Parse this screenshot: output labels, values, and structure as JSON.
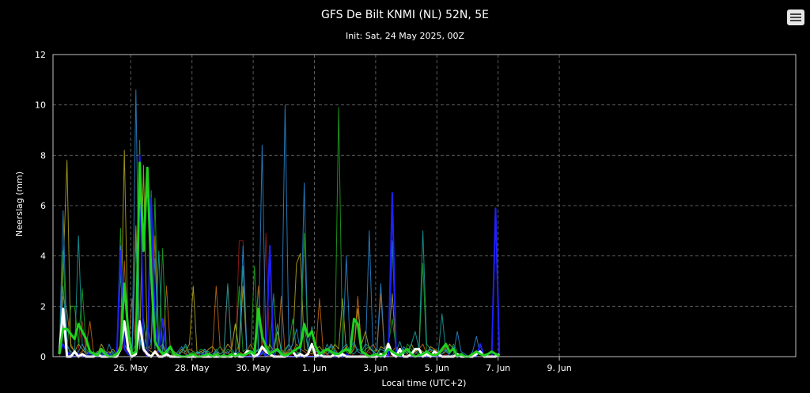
{
  "menu": {
    "icon": "hamburger-menu-icon"
  },
  "chart_data": {
    "type": "line",
    "title": "GFS De Bilt KNMI (NL) 52N, 5E",
    "subtitle": "Init: Sat, 24 May 2025, 00Z",
    "xlabel": "Local time (UTC+2)",
    "ylabel": "Neerslag (mm)",
    "ylim": [
      0,
      12
    ],
    "yticks": [
      "0",
      "2",
      "4",
      "6",
      "8",
      "10",
      "12"
    ],
    "xtick_labels": [
      "26. May",
      "28. May",
      "30. May",
      "1. Jun",
      "3. Jun",
      "5. Jun",
      "7. Jun",
      "9. Jun"
    ],
    "x_start_hour": 0,
    "x_step_hours": 3,
    "grid": true,
    "legend": "none",
    "series": [
      {
        "color": "#1fd11f",
        "width": 3,
        "values": [
          0.1,
          1.1,
          1.1,
          0.9,
          0.7,
          1.3,
          1.0,
          0.7,
          0.2,
          0.1,
          0.05,
          0.3,
          0.1,
          0,
          0,
          0.1,
          0.3,
          2.9,
          1.0,
          0.1,
          0.2,
          7.7,
          4.2,
          7.5,
          3.3,
          0.6,
          0.3,
          0.1,
          0.2,
          0.4,
          0.1,
          0.05,
          0,
          0,
          0.05,
          0.1,
          0,
          0,
          0.05,
          0.1,
          0,
          0.1,
          0,
          0.05,
          0,
          0.1,
          0,
          0.1,
          0.05,
          0.1,
          0.2,
          0.1,
          1.9,
          0.8,
          0.4,
          0.1,
          0.2,
          0.3,
          0.1,
          0.05,
          0.1,
          0.2,
          0.3,
          0.4,
          1.3,
          0.8,
          1.0,
          0.4,
          0.1,
          0.2,
          0.3,
          0.2,
          0.1,
          0.1,
          0.2,
          0.3,
          0.2,
          1.5,
          1.3,
          0.2,
          0.1,
          0,
          0.05,
          0.1,
          0,
          0.1,
          0.3,
          0.2,
          0.1,
          0.05,
          0.2,
          0.3,
          0.1,
          0,
          0.05,
          0.1,
          0.2,
          0.1,
          0.05,
          0.1,
          0.3,
          0.5,
          0.2,
          0.3,
          0,
          0.1,
          0,
          0,
          0.1,
          0.2,
          0.1,
          0.05,
          0.1,
          0.2,
          0.1,
          0.05
        ]
      },
      {
        "color": "#ffffff",
        "width": 3,
        "values": [
          0.1,
          1.9,
          0,
          0,
          0.2,
          0,
          0.1,
          0,
          0,
          0,
          0.1,
          0,
          0,
          0,
          0,
          0,
          0.3,
          1.4,
          0.3,
          0,
          0.1,
          1.4,
          0.3,
          0.1,
          0,
          0.2,
          0,
          0,
          0.1,
          0,
          0,
          0,
          0,
          0,
          0,
          0,
          0,
          0,
          0,
          0,
          0,
          0,
          0,
          0,
          0,
          0,
          0.1,
          0,
          0,
          0.2,
          0.2,
          0,
          0.1,
          0.4,
          0.2,
          0.1,
          0,
          0,
          0,
          0,
          0.1,
          0.2,
          0,
          0.1,
          0,
          0.1,
          0.5,
          0,
          0.1,
          0,
          0,
          0,
          0.1,
          0,
          0.1,
          0,
          0,
          0,
          0,
          0,
          0,
          0,
          0,
          0,
          0.1,
          0,
          0.5,
          0.1,
          0,
          0.3,
          0,
          0,
          0.1,
          0.3,
          0.3,
          0,
          0.1,
          0,
          0.2,
          0.1,
          0,
          0,
          0,
          0,
          0.1,
          0,
          0,
          0,
          0,
          0.1,
          0.2,
          0,
          0,
          0,
          0,
          0.1
        ]
      },
      {
        "color": "#1f1fff",
        "width": 2,
        "values": [
          0.1,
          0.5,
          0.2,
          0,
          0,
          0.1,
          0,
          0,
          0.2,
          0,
          0,
          0,
          0.1,
          0.1,
          0,
          0,
          4.2,
          0.3,
          0.1,
          0,
          0.2,
          8.0,
          0.3,
          0,
          6.3,
          1.3,
          0.2,
          1.5,
          0.1,
          0,
          0,
          0.1,
          0,
          0,
          0,
          0,
          0,
          0,
          0.1,
          0,
          0,
          0,
          0,
          0,
          0,
          0.1,
          0,
          0,
          0,
          0,
          0,
          0,
          0,
          0.2,
          0,
          4.4,
          0,
          0,
          0,
          0,
          0,
          0,
          0,
          0,
          0,
          0,
          0,
          0,
          0,
          0,
          0,
          0,
          0,
          0,
          0,
          0.1,
          0,
          0,
          0,
          0,
          0,
          0,
          0,
          0,
          0,
          0,
          0,
          6.5,
          0.1,
          0,
          0,
          0,
          0,
          0,
          0,
          0,
          0,
          0,
          0,
          0,
          0,
          0,
          0,
          0,
          0,
          0,
          0,
          0,
          0,
          0,
          0.5,
          0,
          0,
          0,
          5.9,
          0.1
        ]
      },
      {
        "color": "#2a8bd6",
        "width": 1,
        "values": [
          0.2,
          5.8,
          0.5,
          0.1,
          0,
          0.2,
          0.5,
          0.1,
          0,
          0.1,
          0,
          0.2,
          0,
          0.5,
          0.1,
          0,
          4.4,
          0.3,
          0.1,
          0,
          10.6,
          0.7,
          0.2,
          1.2,
          0.5,
          3.9,
          0.2,
          0.4,
          0.1,
          0,
          0,
          0.2,
          0.4,
          0.1,
          0,
          0,
          0.2,
          0,
          0.3,
          0,
          0.1,
          0.2,
          0,
          0.1,
          0.2,
          0,
          0.1,
          0.2,
          4.4,
          0.3,
          0,
          0.1,
          0.3,
          8.4,
          0,
          0.1,
          0,
          0.3,
          0,
          10.0,
          0.2,
          0.5,
          1.1,
          0.2,
          6.9,
          0.1,
          0.4,
          0.2,
          0.2,
          0.1,
          0,
          0.5,
          0.2,
          0.1,
          0.1,
          4.0,
          0.3,
          0.6,
          0.2,
          0.1,
          0.1,
          5.0,
          0.1,
          0.3,
          2.9,
          0.2,
          0,
          4.6,
          0.3,
          0.1,
          0.4,
          0.2,
          0.1,
          0.1,
          0.3,
          0.1,
          0.2,
          0.3,
          0,
          0.2,
          0.1,
          0.3,
          0,
          0.1,
          1.0,
          0.2,
          0.1,
          0,
          0.2,
          0.8,
          0.1,
          0,
          0.1
        ]
      },
      {
        "color": "#1aa3a3",
        "width": 1,
        "values": [
          0.3,
          2.8,
          0.4,
          0.2,
          0.1,
          4.8,
          0.5,
          0.2,
          0.1,
          0.1,
          0.2,
          0.1,
          0,
          0.1,
          0.2,
          0,
          3.3,
          0.5,
          0.2,
          0.1,
          4.7,
          0.3,
          1.5,
          0.2,
          6.6,
          0.3,
          4.2,
          0.2,
          0.1,
          0.3,
          0.1,
          0,
          0.2,
          0.5,
          0.1,
          0,
          0.2,
          0.1,
          0.2,
          0.2,
          0,
          0.3,
          0.1,
          0.2,
          2.9,
          0.3,
          0.1,
          0.5,
          3.6,
          0.2,
          0.1,
          0.3,
          0.2,
          0.1,
          0.4,
          0.2,
          0.3,
          1.3,
          0.1,
          0.2,
          0.5,
          0.2,
          0.1,
          0.2,
          1.2,
          0.3,
          1.2,
          0.4,
          0.2,
          0.1,
          0.5,
          0.1,
          0.2,
          0.1,
          0.3,
          0.5,
          0.2,
          0.1,
          0.3,
          0.2,
          0.5,
          0.4,
          0.2,
          0.1,
          0.3,
          0.2,
          0.5,
          0.1,
          0.2,
          0.6,
          0.1,
          0.2,
          0.5,
          1.0,
          0.3,
          5.0,
          0.5,
          0.3,
          0.2,
          0.1,
          1.7,
          0.2,
          0.1,
          0.4,
          0.1
        ]
      },
      {
        "color": "#1fa81f",
        "width": 1,
        "values": [
          0.2,
          4.2,
          0.3,
          2.0,
          2.0,
          0.5,
          2.7,
          0.3,
          0.1,
          0.2,
          0,
          0.2,
          0.1,
          0,
          0.1,
          0.1,
          5.1,
          0.3,
          0.1,
          0.2,
          0.5,
          8.6,
          0.4,
          0.3,
          0.5,
          6.3,
          0.2,
          4.3,
          0.1,
          0.2,
          0,
          0.1,
          0.2,
          0.4,
          0.1,
          0.2,
          0.1,
          0.3,
          0.2,
          0,
          0.1,
          0.2,
          0.4,
          0.1,
          0.3,
          0.2,
          0.1,
          2.8,
          0.2,
          0.3,
          0.1,
          3.6,
          0.2,
          0.1,
          0.5,
          0.3,
          2.5,
          0.2,
          0.1,
          0.3,
          0.5,
          1.5,
          0.2,
          0.1,
          4.9,
          0.3,
          0.2,
          0.5,
          0.1,
          0.3,
          0.2,
          0.4,
          0.1,
          9.9,
          0.3,
          0.2,
          0.1,
          0.5,
          0.2,
          0.1,
          0.3,
          0.4,
          0.2,
          0.3,
          0.1,
          0.2,
          0.5,
          1.5,
          0.3,
          0.2,
          0.1,
          0.5,
          0.3,
          0.2,
          0.1,
          3.7,
          0.1,
          0.3,
          0.2,
          0.1,
          0.2,
          0.3,
          0.1,
          0.5,
          0.2
        ]
      },
      {
        "color": "#b5a91f",
        "width": 1,
        "values": [
          0.2,
          3.5,
          7.8,
          0.4,
          0.2,
          0.5,
          0.3,
          0.1,
          0.2,
          0,
          0.1,
          0.5,
          0.2,
          0.1,
          0.3,
          0.1,
          0.5,
          8.2,
          0.4,
          0.2,
          5.2,
          0.3,
          7.6,
          0.3,
          0.2,
          0.1,
          0.3,
          0.5,
          0.1,
          0,
          0.2,
          0.1,
          0.3,
          0.2,
          0.5,
          2.8,
          0.1,
          0.2,
          0.1,
          0.3,
          0.4,
          0.2,
          0.1,
          0.2,
          0.5,
          0.3,
          1.3,
          0.2,
          2.8,
          0.3,
          0.2,
          0.1,
          0.3,
          0.2,
          0.1,
          0.5,
          0.2,
          1.0,
          0.3,
          0.1,
          0.2,
          0.5,
          3.7,
          4.1,
          0.3,
          0.2,
          0.1,
          0.3,
          0.4,
          0.2,
          0.1,
          0.2,
          0.5,
          0.3,
          2.3,
          0.2,
          0.1,
          0.3,
          1.9,
          0.5,
          1.0,
          0.3,
          0.2,
          0.1,
          0.4,
          0.3,
          0.6,
          2.5,
          0.2,
          0.1,
          0.3,
          0.1,
          0.5,
          0.2,
          0.3,
          0.2,
          0.1,
          0.4,
          0.3,
          0.2,
          0.1,
          0.2,
          0.5,
          0.3,
          0.1
        ]
      },
      {
        "color": "#c86a10",
        "width": 1,
        "values": [
          0.1,
          2.4,
          1.8,
          0.5,
          0.2,
          0.1,
          0.2,
          0.4,
          1.4,
          0.1,
          0.2,
          0,
          0.1,
          0.2,
          0,
          0.1,
          0.3,
          3.8,
          0.2,
          2.3,
          0.3,
          8.0,
          0.2,
          0.4,
          0.3,
          4.8,
          0.2,
          0.1,
          2.8,
          0.3,
          0.1,
          0,
          0.2,
          0.1,
          0.3,
          0.2,
          0.1,
          0.2,
          0.3,
          0.1,
          0.2,
          2.8,
          0.4,
          0.2,
          0.1,
          0.3,
          1.3,
          0.2,
          0.1,
          0.2,
          0.5,
          0.2,
          2.8,
          0.3,
          0.2,
          0.1,
          0.4,
          0.2,
          2.4,
          0.1,
          0.3,
          0.2,
          0.5,
          0.3,
          0.2,
          0.1,
          0.3,
          0.2,
          2.3,
          0.1,
          0.2,
          0.5,
          0.3,
          0.1,
          0.2,
          0.4,
          0.1,
          0.3,
          2.4,
          0.2,
          0.1,
          0.3,
          0.5,
          0.2,
          2.5,
          0.1,
          0.3,
          0.2,
          0.4,
          0.1,
          0.2,
          0.3,
          0.1,
          0.2,
          0.3,
          0.5,
          0.1,
          0.2,
          0.3,
          0.1,
          0.2,
          0.4,
          0.2,
          0.3
        ]
      },
      {
        "color": "#a01a1a",
        "width": 1,
        "values": [
          0,
          0.5,
          0.2,
          0.1,
          0,
          0.3,
          1.4,
          0.1,
          0,
          0,
          0.1,
          0,
          0,
          0.1,
          0,
          0,
          0.2,
          0.5,
          0.1,
          0,
          0.3,
          1.3,
          0.2,
          0,
          5.2,
          0.3,
          0.1,
          0,
          0.2,
          0,
          0,
          0.1,
          0,
          0,
          0.2,
          0,
          0.1,
          0,
          0,
          0.1,
          0,
          0.2,
          0,
          0.1,
          2.8,
          0.1,
          0,
          4.6,
          4.6,
          0.1,
          0,
          0.2,
          0,
          0.1,
          4.9,
          0,
          0.1,
          0,
          0.2,
          0.1,
          0,
          0.1,
          0.2,
          0,
          0,
          0.1,
          0,
          0.2,
          0.1,
          0,
          0.1,
          0,
          0.2,
          0,
          0.1,
          0,
          0.2,
          0,
          0,
          0.1,
          0,
          0.2,
          0,
          0.1,
          0,
          0,
          0.1,
          0,
          0.2,
          0,
          0,
          0.1,
          0,
          0.2,
          0,
          0.1,
          0,
          0,
          0.1,
          0.2,
          0,
          0.1,
          0,
          0.1
        ]
      }
    ]
  }
}
